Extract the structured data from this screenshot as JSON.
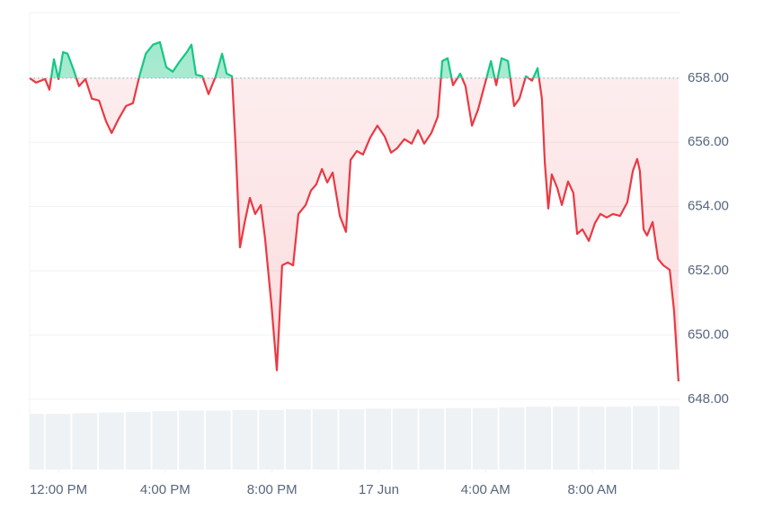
{
  "chart_data": {
    "type": "line",
    "x": [
      -1.08,
      -0.84,
      -0.5,
      -0.34,
      -0.17,
      0,
      0.17,
      0.34,
      0.57,
      0.77,
      1.01,
      1.25,
      1.52,
      1.78,
      1.99,
      2.26,
      2.53,
      2.79,
      3.03,
      3.27,
      3.54,
      3.8,
      4.04,
      4.28,
      4.55,
      4.81,
      4.98,
      5.15,
      5.39,
      5.62,
      5.89,
      6.13,
      6.3,
      6.5,
      6.63,
      6.8,
      6.97,
      7.17,
      7.37,
      7.58,
      7.74,
      7.98,
      8.18,
      8.38,
      8.59,
      8.79,
      8.99,
      9.26,
      9.46,
      9.66,
      9.87,
      10.07,
      10.27,
      10.54,
      10.77,
      10.94,
      11.18,
      11.41,
      11.68,
      11.95,
      12.22,
      12.46,
      12.69,
      12.96,
      13.23,
      13.47,
      13.7,
      13.97,
      14.21,
      14.38,
      14.58,
      14.78,
      15.05,
      15.25,
      15.49,
      15.72,
      15.99,
      16.2,
      16.4,
      16.6,
      16.84,
      17.07,
      17.27,
      17.51,
      17.74,
      17.95,
      18.11,
      18.22,
      18.35,
      18.48,
      18.69,
      18.86,
      19.09,
      19.29,
      19.43,
      19.63,
      19.87,
      20.1,
      20.3,
      20.54,
      20.77,
      21.04,
      21.31,
      21.52,
      21.68,
      21.78,
      21.92,
      22.05,
      22.26,
      22.46,
      22.66,
      22.9,
      23.06,
      23.23
    ],
    "values": [
      658.0,
      657.86,
      657.97,
      657.64,
      658.59,
      657.97,
      658.81,
      658.76,
      658.25,
      657.75,
      657.97,
      657.36,
      657.3,
      656.66,
      656.29,
      656.74,
      657.13,
      657.22,
      658.06,
      658.76,
      659.04,
      659.12,
      658.34,
      658.2,
      658.53,
      658.81,
      659.04,
      658.11,
      658.06,
      657.5,
      658.06,
      658.76,
      658.14,
      658.06,
      655.96,
      652.73,
      653.49,
      654.27,
      653.77,
      654.05,
      653.01,
      650.91,
      648.9,
      652.17,
      652.26,
      652.17,
      653.77,
      654.05,
      654.5,
      654.69,
      655.17,
      654.75,
      655.06,
      653.71,
      653.21,
      655.45,
      655.73,
      655.62,
      656.15,
      656.52,
      656.18,
      655.68,
      655.82,
      656.1,
      655.96,
      656.38,
      655.96,
      656.29,
      656.8,
      658.53,
      658.62,
      657.78,
      658.14,
      657.75,
      656.52,
      657.02,
      657.86,
      658.53,
      657.78,
      658.62,
      658.53,
      657.13,
      657.36,
      658.06,
      657.92,
      658.31,
      657.36,
      655.39,
      653.94,
      655.0,
      654.57,
      654.05,
      654.78,
      654.42,
      653.15,
      653.29,
      652.93,
      653.49,
      653.77,
      653.66,
      653.77,
      653.71,
      654.13,
      655.11,
      655.48,
      655.11,
      653.29,
      653.1,
      653.52,
      652.37,
      652.17,
      652.03,
      650.77,
      648.56
    ],
    "reference": 658,
    "up_color": "#16c784",
    "down_color": "#ea3943",
    "xlim": [
      -1.08,
      23.3
    ],
    "xticks": [
      {
        "value": 0,
        "label": "12:00 PM"
      },
      {
        "value": 4,
        "label": "4:00 PM"
      },
      {
        "value": 8,
        "label": "8:00 PM"
      },
      {
        "value": 12,
        "label": "17 Jun"
      },
      {
        "value": 16,
        "label": "4:00 AM"
      },
      {
        "value": 20,
        "label": "8:00 AM"
      }
    ],
    "ylim": [
      647.8,
      660.04
    ],
    "yticks": [
      {
        "value": 648,
        "label": "648.00"
      },
      {
        "value": 650,
        "label": "650.00"
      },
      {
        "value": 652,
        "label": "652.00"
      },
      {
        "value": 654,
        "label": "654.00"
      },
      {
        "value": 656,
        "label": "656.00"
      },
      {
        "value": 658,
        "label": "658.00"
      }
    ],
    "grid": true,
    "volume_x": [
      -1,
      0,
      1,
      2,
      3,
      4,
      5,
      6,
      7,
      8,
      9,
      10,
      11,
      12,
      13,
      14,
      15,
      16,
      17,
      18,
      19,
      20,
      21,
      22,
      23
    ],
    "volume_values": [
      86,
      86,
      87,
      88,
      89,
      90,
      91,
      91,
      92,
      92,
      93,
      93,
      93,
      94,
      94,
      94,
      95,
      95,
      96,
      97,
      97,
      97,
      97,
      98,
      98
    ],
    "volume_lim": [
      0,
      100
    ],
    "volume_color": "#eff2f5"
  }
}
